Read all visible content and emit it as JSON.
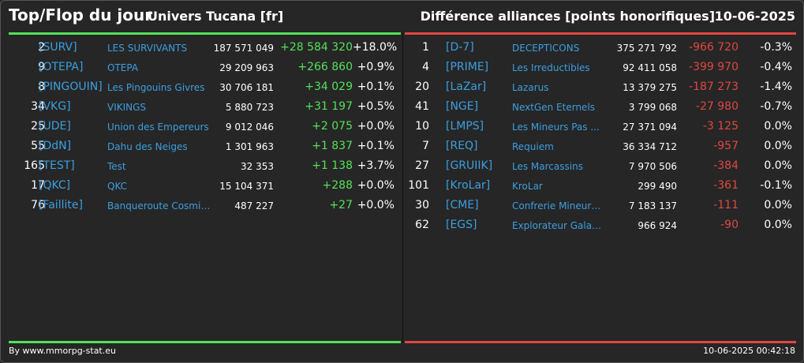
{
  "header": {
    "title": "Top/Flop du jour",
    "universe": "Univers Tucana [fr]",
    "subtitle": "Différence alliances [points honorifiques]",
    "date": "10-06-2025"
  },
  "colors": {
    "positive": "#55e05a",
    "negative": "#e0473f",
    "link": "#3b9fe0",
    "background": "#262626"
  },
  "top": [
    {
      "rank": "2",
      "tag": "[SURV]",
      "name": "LES SURVIVANTS",
      "points": "187 571 049",
      "diff": "+28 584 320",
      "pct": "+18.0%"
    },
    {
      "rank": "9",
      "tag": "[OTEPA]",
      "name": "OTEPA",
      "points": "29 209 963",
      "diff": "+266 860",
      "pct": "+0.9%"
    },
    {
      "rank": "8",
      "tag": "[PINGOUIN]",
      "name": "Les Pingouins Givres",
      "points": "30 706 181",
      "diff": "+34 029",
      "pct": "+0.1%"
    },
    {
      "rank": "34",
      "tag": "[VKG]",
      "name": "VIKINGS",
      "points": "5 880 723",
      "diff": "+31 197",
      "pct": "+0.5%"
    },
    {
      "rank": "25",
      "tag": "[UDE]",
      "name": "Union des Empereurs",
      "points": "9 012 046",
      "diff": "+2 075",
      "pct": "+0.0%"
    },
    {
      "rank": "55",
      "tag": "[DdN]",
      "name": "Dahu des Neiges",
      "points": "1 301 963",
      "diff": "+1 837",
      "pct": "+0.1%"
    },
    {
      "rank": "165",
      "tag": "[TEST]",
      "name": "Test",
      "points": "32 353",
      "diff": "+1 138",
      "pct": "+3.7%"
    },
    {
      "rank": "17",
      "tag": "[QKC]",
      "name": "QKC",
      "points": "15 104 371",
      "diff": "+288",
      "pct": "+0.0%"
    },
    {
      "rank": "76",
      "tag": "[Faillite]",
      "name": "Banqueroute Cosmique",
      "points": "487 227",
      "diff": "+27",
      "pct": "+0.0%"
    }
  ],
  "flop": [
    {
      "rank": "1",
      "tag": "[D-7]",
      "name": "DECEPTICONS",
      "points": "375 271 792",
      "diff": "-966 720",
      "pct": "-0.3%"
    },
    {
      "rank": "4",
      "tag": "[PRIME]",
      "name": "Les Irreductibles",
      "points": "92 411 058",
      "diff": "-399 970",
      "pct": "-0.4%"
    },
    {
      "rank": "20",
      "tag": "[LaZar]",
      "name": "Lazarus",
      "points": "13 379 275",
      "diff": "-187 273",
      "pct": "-1.4%"
    },
    {
      "rank": "41",
      "tag": "[NGE]",
      "name": "NextGen Eternels",
      "points": "3 799 068",
      "diff": "-27 980",
      "pct": "-0.7%"
    },
    {
      "rank": "10",
      "tag": "[LMPS]",
      "name": "Les Mineurs Pas ...",
      "points": "27 371 094",
      "diff": "-3 125",
      "pct": "0.0%"
    },
    {
      "rank": "7",
      "tag": "[REQ]",
      "name": "Requiem",
      "points": "36 334 712",
      "diff": "-957",
      "pct": "0.0%"
    },
    {
      "rank": "27",
      "tag": "[GRUIIK]",
      "name": "Les Marcassins",
      "points": "7 970 506",
      "diff": "-384",
      "pct": "0.0%"
    },
    {
      "rank": "101",
      "tag": "[KroLar]",
      "name": "KroLar",
      "points": "299 490",
      "diff": "-361",
      "pct": "-0.1%"
    },
    {
      "rank": "30",
      "tag": "[CME]",
      "name": "Confrerie Mineurs ...",
      "points": "7 183 137",
      "diff": "-111",
      "pct": "0.0%"
    },
    {
      "rank": "62",
      "tag": "[EGS]",
      "name": "Explorateur Galacti...",
      "points": "966 924",
      "diff": "-90",
      "pct": "0.0%"
    }
  ],
  "footer": {
    "credit": "By www.mmorpg-stat.eu",
    "timestamp": "10-06-2025 00:42:18"
  }
}
